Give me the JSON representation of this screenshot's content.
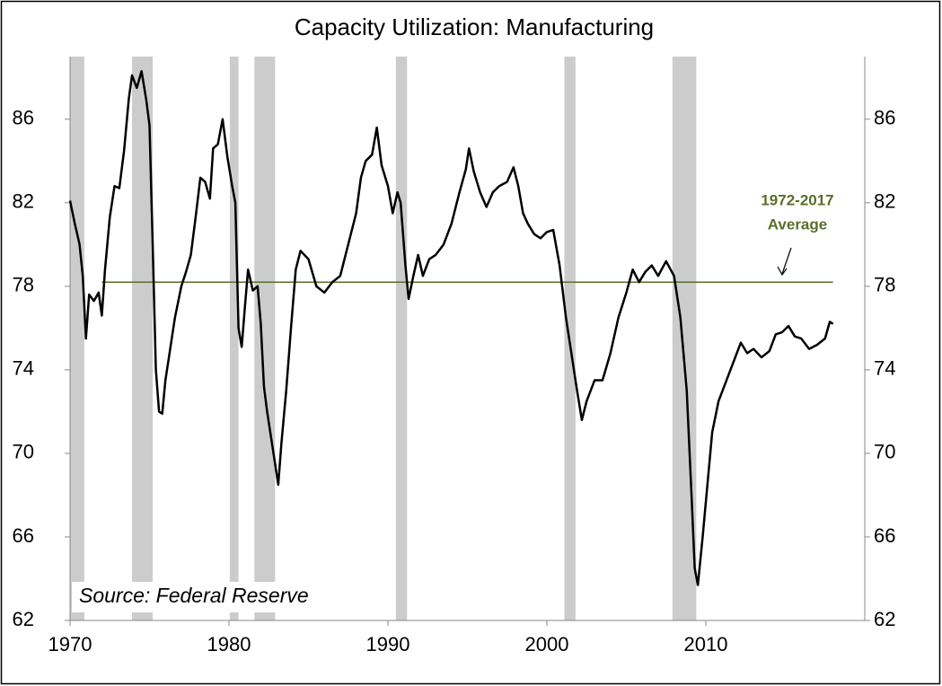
{
  "chart_data": {
    "type": "line",
    "title": "Capacity Utilization: Manufacturing",
    "source": "Source: Federal Reserve",
    "color": "#000000",
    "x": [
      1970.0,
      1970.3,
      1970.6,
      1970.8,
      1971.0,
      1971.2,
      1971.5,
      1971.8,
      1972.0,
      1972.2,
      1972.5,
      1972.8,
      1973.1,
      1973.4,
      1973.7,
      1973.9,
      1974.2,
      1974.5,
      1974.8,
      1975.0,
      1975.2,
      1975.4,
      1975.6,
      1975.8,
      1976.0,
      1976.3,
      1976.6,
      1977.0,
      1977.3,
      1977.6,
      1977.9,
      1978.2,
      1978.5,
      1978.8,
      1979.0,
      1979.3,
      1979.6,
      1979.9,
      1980.2,
      1980.4,
      1980.6,
      1980.8,
      1981.0,
      1981.2,
      1981.5,
      1981.8,
      1982.0,
      1982.2,
      1982.4,
      1982.6,
      1982.9,
      1983.1,
      1983.3,
      1983.6,
      1983.9,
      1984.2,
      1984.5,
      1985.0,
      1985.5,
      1986.0,
      1986.5,
      1987.0,
      1987.5,
      1988.0,
      1988.3,
      1988.6,
      1989.0,
      1989.3,
      1989.6,
      1990.0,
      1990.3,
      1990.6,
      1990.8,
      1991.1,
      1991.3,
      1991.6,
      1991.9,
      1992.2,
      1992.6,
      1993.0,
      1993.5,
      1994.0,
      1994.5,
      1994.9,
      1995.1,
      1995.4,
      1995.8,
      1996.2,
      1996.6,
      1997.0,
      1997.5,
      1997.9,
      1998.2,
      1998.5,
      1998.8,
      1999.2,
      1999.6,
      2000.0,
      2000.4,
      2000.8,
      2001.2,
      2001.6,
      2001.9,
      2002.2,
      2002.5,
      2003.0,
      2003.5,
      2004.0,
      2004.5,
      2005.0,
      2005.4,
      2005.8,
      2006.2,
      2006.6,
      2007.0,
      2007.5,
      2008.0,
      2008.4,
      2008.8,
      2009.1,
      2009.3,
      2009.5,
      2009.8,
      2010.1,
      2010.4,
      2010.8,
      2011.3,
      2011.8,
      2012.2,
      2012.6,
      2013.0,
      2013.5,
      2014.0,
      2014.4,
      2014.8,
      2015.2,
      2015.6,
      2016.0,
      2016.5,
      2017.0,
      2017.5,
      2017.8,
      2018.0
    ],
    "values": [
      82.1,
      81.0,
      80.0,
      78.5,
      75.5,
      77.6,
      77.3,
      77.7,
      76.6,
      78.8,
      81.3,
      82.8,
      82.7,
      84.5,
      87.0,
      88.1,
      87.5,
      88.3,
      86.9,
      85.7,
      80.0,
      74.0,
      72.0,
      71.9,
      73.5,
      75.0,
      76.5,
      78.0,
      78.7,
      79.5,
      81.3,
      83.2,
      83.0,
      82.2,
      84.6,
      84.8,
      86.0,
      84.2,
      82.8,
      82.0,
      76.0,
      75.1,
      77.0,
      78.8,
      77.8,
      78.0,
      76.2,
      73.2,
      72.0,
      71.0,
      69.5,
      68.5,
      70.5,
      73.0,
      76.0,
      78.8,
      79.7,
      79.3,
      78.0,
      77.7,
      78.2,
      78.5,
      80.0,
      81.5,
      83.2,
      84.0,
      84.3,
      85.6,
      83.8,
      82.8,
      81.5,
      82.5,
      82.0,
      79.0,
      77.4,
      78.5,
      79.5,
      78.5,
      79.3,
      79.5,
      80.0,
      81.0,
      82.5,
      83.6,
      84.6,
      83.5,
      82.5,
      81.8,
      82.5,
      82.8,
      83.0,
      83.7,
      82.8,
      81.5,
      81.0,
      80.5,
      80.3,
      80.6,
      80.7,
      79.0,
      76.5,
      74.5,
      73.0,
      71.6,
      72.5,
      73.5,
      73.5,
      74.8,
      76.5,
      77.7,
      78.8,
      78.2,
      78.7,
      79.0,
      78.5,
      79.2,
      78.5,
      76.5,
      73.0,
      68.0,
      64.5,
      63.7,
      66.0,
      68.5,
      71.0,
      72.5,
      73.5,
      74.5,
      75.3,
      74.8,
      75.0,
      74.6,
      74.9,
      75.7,
      75.8,
      76.1,
      75.6,
      75.5,
      75.0,
      75.2,
      75.5,
      76.3,
      76.2
    ],
    "recessions": [
      [
        1970.0,
        1970.9
      ],
      [
        1973.9,
        1975.2
      ],
      [
        1980.05,
        1980.6
      ],
      [
        1981.6,
        1982.9
      ],
      [
        1990.5,
        1991.2
      ],
      [
        2001.1,
        2001.8
      ],
      [
        2007.9,
        2009.4
      ]
    ],
    "recession_color": "#cccccc",
    "average": 78.2,
    "average_range": [
      1972,
      2018
    ],
    "average_color": "#5a6e2a",
    "average_label": [
      "1972-2017",
      "Average"
    ],
    "xlim": [
      1970,
      2020
    ],
    "xticks": [
      1970,
      1980,
      1990,
      2000,
      2010
    ],
    "ylim": [
      62,
      89
    ],
    "yticks": [
      62,
      66,
      70,
      74,
      78,
      82,
      86
    ],
    "y2lim": [
      62,
      89
    ],
    "y2ticks": [
      62,
      66,
      70,
      74,
      78,
      82,
      86
    ]
  }
}
